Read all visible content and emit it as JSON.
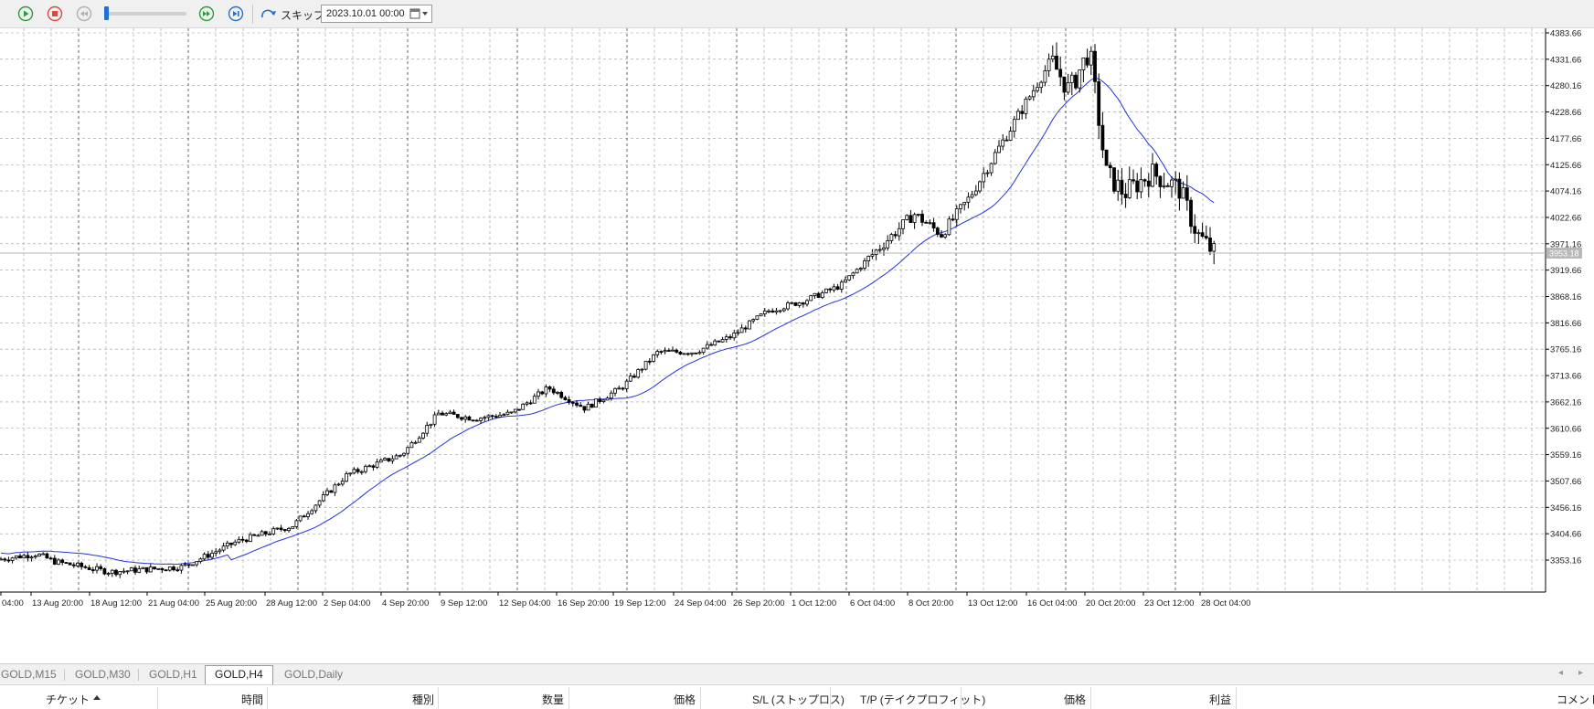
{
  "toolbar": {
    "buttons": [
      "play-icon",
      "stop-icon",
      "rewind-icon",
      "fast-forward-icon",
      "step-forward-icon"
    ],
    "skip_label": "スキップ",
    "date_value": "2023.10.01 00:00",
    "colors": {
      "play": "#2a9d3a",
      "stop": "#e0483c",
      "disabled": "#b0b0b0",
      "accent": "#1e73d2"
    }
  },
  "chart": {
    "symbol": "GOLD,H4",
    "current_price_label": "3953.18",
    "y_ticks": [
      "4383.66",
      "4331.66",
      "4280.16",
      "4228.66",
      "4177.66",
      "4125.66",
      "4074.16",
      "4022.66",
      "3971.16",
      "3919.66",
      "3868.16",
      "3816.66",
      "3765.16",
      "3713.66",
      "3662.16",
      "3610.66",
      "3559.16",
      "3507.66",
      "3456.16",
      "3404.66",
      "3353.16"
    ],
    "x_ticks": [
      "04:00",
      "13 Aug 20:00",
      "18 Aug 12:00",
      "21 Aug 04:00",
      "25 Aug 20:00",
      "28 Aug 12:00",
      "2 Sep 04:00",
      "4 Sep 20:00",
      "9 Sep 12:00",
      "12 Sep 04:00",
      "16 Sep 20:00",
      "19 Sep 12:00",
      "24 Sep 04:00",
      "26 Sep 20:00",
      "1 Oct 12:00",
      "6 Oct 04:00",
      "8 Oct 20:00",
      "13 Oct 12:00",
      "16 Oct 04:00",
      "20 Oct 20:00",
      "23 Oct 12:00",
      "28 Oct 04:00"
    ],
    "colors": {
      "candle": "#000000",
      "ma": "#2233dd",
      "grid": "#9a9a9a",
      "price_line": "#b4b4b4",
      "price_label_bg": "#b8b8b8"
    }
  },
  "tabs": {
    "items": [
      "GOLD,M15",
      "GOLD,M30",
      "GOLD,H1",
      "GOLD,H4",
      "GOLD,Daily"
    ],
    "active": "GOLD,H4"
  },
  "trade_table": {
    "columns": [
      "チケット",
      "時間",
      "種別",
      "数量",
      "価格",
      "S/L (ストップロス)",
      "T/P (テイクプロフィット)",
      "価格",
      "利益",
      "コメント"
    ]
  }
}
